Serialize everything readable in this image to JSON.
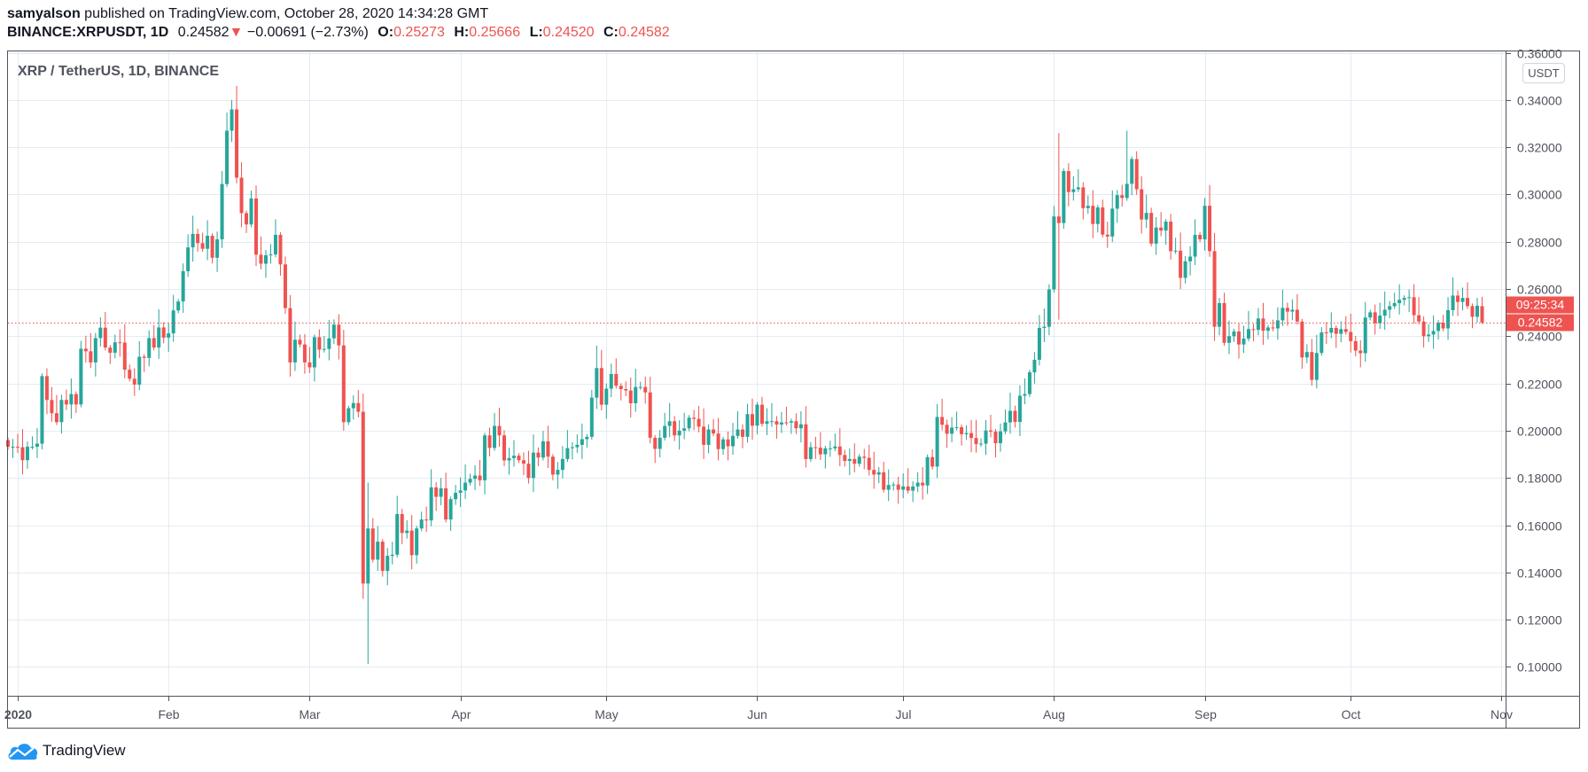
{
  "header": {
    "author": "samyalson",
    "published_text": "published on TradingView.com, October 28, 2020 14:34:28 GMT",
    "symbol": "BINANCE:XRPUSDT, 1D",
    "last": "0.24582",
    "change": "−0.00691 (−2.73%)",
    "o_label": "O:",
    "o": "0.25273",
    "h_label": "H:",
    "h": "0.25666",
    "l_label": "L:",
    "l": "0.24520",
    "c_label": "C:",
    "c": "0.24582",
    "direction_icon": "triangle-down-icon"
  },
  "chart_title": "XRP / TetherUS, 1D, BINANCE",
  "currency_badge": "USDT",
  "price_tag": {
    "value": "0.24582",
    "countdown": "09:25:34"
  },
  "branding": "TradingView",
  "colors": {
    "up": "#26a69a",
    "down": "#ef5350",
    "grid": "#e4ecf2",
    "axis": "#50535e"
  },
  "chart_data": {
    "type": "candlestick",
    "title": "XRP / TetherUS, 1D, BINANCE",
    "start_date": "2019-12-30",
    "interval": "1D",
    "first_open": 0.196,
    "closes": [
      0.1932,
      0.1932,
      0.193,
      0.1875,
      0.1932,
      0.1932,
      0.1945,
      0.2231,
      0.213,
      0.2074,
      0.2036,
      0.213,
      0.2111,
      0.2155,
      0.2111,
      0.2347,
      0.2336,
      0.2289,
      0.2392,
      0.2436,
      0.2352,
      0.233,
      0.2374,
      0.2373,
      0.2258,
      0.222,
      0.2195,
      0.2313,
      0.2308,
      0.2392,
      0.2352,
      0.2437,
      0.2394,
      0.2412,
      0.2509,
      0.2547,
      0.2675,
      0.2776,
      0.2833,
      0.2794,
      0.277,
      0.2825,
      0.2732,
      0.281,
      0.3044,
      0.327,
      0.336,
      0.3071,
      0.2921,
      0.2873,
      0.2983,
      0.2745,
      0.2707,
      0.2743,
      0.2746,
      0.2829,
      0.2704,
      0.2519,
      0.2289,
      0.2385,
      0.2365,
      0.2289,
      0.2268,
      0.2396,
      0.2343,
      0.2346,
      0.2391,
      0.2449,
      0.2361,
      0.2036,
      0.2095,
      0.2117,
      0.208,
      0.1353,
      0.1586,
      0.1454,
      0.153,
      0.1406,
      0.147,
      0.1475,
      0.1647,
      0.1567,
      0.1577,
      0.1473,
      0.1586,
      0.1624,
      0.162,
      0.176,
      0.172,
      0.1756,
      0.1624,
      0.171,
      0.1737,
      0.1747,
      0.178,
      0.1796,
      0.181,
      0.179,
      0.198,
      0.1927,
      0.202,
      0.198,
      0.1874,
      0.1884,
      0.1894,
      0.1875,
      0.186,
      0.18,
      0.1907,
      0.1886,
      0.1955,
      0.189,
      0.1814,
      0.1834,
      0.188,
      0.1926,
      0.193,
      0.194,
      0.1964,
      0.1974,
      0.214,
      0.2265,
      0.211,
      0.2178,
      0.224,
      0.219,
      0.2176,
      0.217,
      0.2116,
      0.2185,
      0.2185,
      0.2162,
      0.197,
      0.1923,
      0.197,
      0.202,
      0.204,
      0.198,
      0.2,
      0.201,
      0.2055,
      0.205,
      0.2017,
      0.194,
      0.2005,
      0.1988,
      0.1922,
      0.1963,
      0.1934,
      0.1978,
      0.2005,
      0.1974,
      0.207,
      0.2021,
      0.211,
      0.2029,
      0.204,
      0.204,
      0.2026,
      0.2035,
      0.2034,
      0.204,
      0.201,
      0.2027,
      0.188,
      0.193,
      0.1928,
      0.19,
      0.1925,
      0.1925,
      0.1933,
      0.1897,
      0.1872,
      0.188,
      0.186,
      0.189,
      0.1885,
      0.1834,
      0.1814,
      0.1824,
      0.175,
      0.177,
      0.1772,
      0.175,
      0.1764,
      0.1746,
      0.1764,
      0.178,
      0.1768,
      0.1888,
      0.1848,
      0.2058,
      0.2025,
      0.1987,
      0.2013,
      0.2015,
      0.1985,
      0.199,
      0.1969,
      0.1943,
      0.1945,
      0.2001,
      0.1996,
      0.1947,
      0.1997,
      0.2035,
      0.2084,
      0.2037,
      0.2148,
      0.2155,
      0.2247,
      0.23,
      0.2435,
      0.244,
      0.2598,
      0.2907,
      0.2879,
      0.3099,
      0.301,
      0.3022,
      0.303,
      0.2942,
      0.2952,
      0.2875,
      0.2945,
      0.283,
      0.2822,
      0.294,
      0.2997,
      0.2985,
      0.3045,
      0.315,
      0.3022,
      0.2894,
      0.2922,
      0.2792,
      0.286,
      0.2847,
      0.2885,
      0.276,
      0.2762,
      0.2647,
      0.2717,
      0.2737,
      0.2829,
      0.281,
      0.2952,
      0.276,
      0.244,
      0.254,
      0.2372,
      0.24,
      0.242,
      0.2365,
      0.239,
      0.243,
      0.2427,
      0.2475,
      0.2423,
      0.2437,
      0.2433,
      0.2467,
      0.252,
      0.2504,
      0.2512,
      0.2462,
      0.231,
      0.2333,
      0.2215,
      0.2329,
      0.2416,
      0.2415,
      0.2435,
      0.241,
      0.243,
      0.2418,
      0.2379,
      0.2339,
      0.2328,
      0.2479,
      0.2501,
      0.2455,
      0.2487,
      0.2512,
      0.2527,
      0.254,
      0.2554,
      0.2562,
      0.2565,
      0.2489,
      0.2462,
      0.24,
      0.2407,
      0.2422,
      0.2457,
      0.2433,
      0.251,
      0.2572,
      0.2545,
      0.2562,
      0.25273,
      0.2482,
      0.2529,
      0.24582
    ],
    "extreme_wicks": [
      {
        "index": 46,
        "high": 0.34
      },
      {
        "index": 47,
        "high": 0.346
      },
      {
        "index": 73,
        "low": 0.1288
      },
      {
        "index": 74,
        "low": 0.1012,
        "high": 0.178
      },
      {
        "index": 121,
        "high": 0.236
      },
      {
        "index": 216,
        "high": 0.326,
        "low": 0.247
      },
      {
        "index": 230,
        "high": 0.327
      },
      {
        "index": 247,
        "high": 0.304
      },
      {
        "index": 268,
        "low": 0.219
      },
      {
        "index": 303,
        "open": 0.25273,
        "high": 0.25666,
        "low": 0.2452
      }
    ],
    "ylim": [
      0.0876,
      0.3602
    ],
    "y_ticks": [
      "0.10000",
      "0.12000",
      "0.14000",
      "0.16000",
      "0.18000",
      "0.20000",
      "0.22000",
      "0.24000",
      "0.26000",
      "0.28000",
      "0.30000",
      "0.32000",
      "0.34000",
      "0.36000"
    ],
    "x_ticks": [
      {
        "label": "2020",
        "date": "2020-01-01",
        "bold": true
      },
      {
        "label": "Feb",
        "date": "2020-02-01"
      },
      {
        "label": "Mar",
        "date": "2020-03-01"
      },
      {
        "label": "Apr",
        "date": "2020-04-01"
      },
      {
        "label": "May",
        "date": "2020-05-01"
      },
      {
        "label": "Jun",
        "date": "2020-06-01"
      },
      {
        "label": "Jul",
        "date": "2020-07-01"
      },
      {
        "label": "Aug",
        "date": "2020-08-01"
      },
      {
        "label": "Sep",
        "date": "2020-09-01"
      },
      {
        "label": "Oct",
        "date": "2020-10-01"
      },
      {
        "label": "Nov",
        "date": "2020-11-01"
      }
    ],
    "last_price": 0.24582,
    "grid": true
  }
}
